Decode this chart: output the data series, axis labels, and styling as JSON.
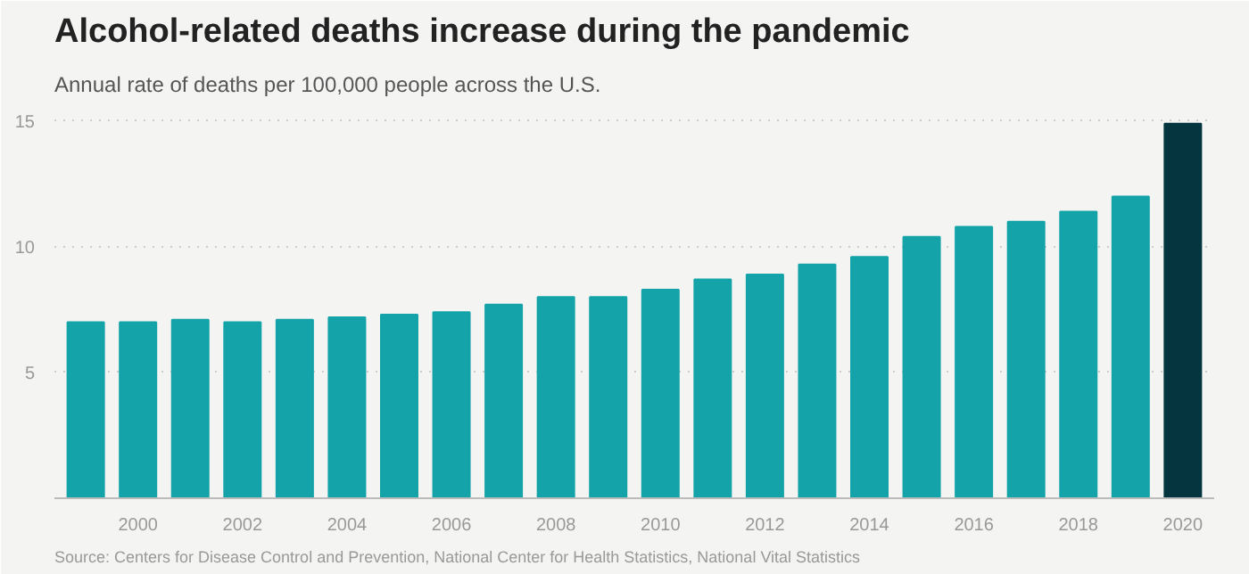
{
  "chart_data": {
    "type": "bar",
    "title": "Alcohol-related deaths increase during the pandemic",
    "subtitle": "Annual rate of deaths per 100,000 people across the U.S.",
    "x": [
      1999,
      2000,
      2001,
      2002,
      2003,
      2004,
      2005,
      2006,
      2007,
      2008,
      2009,
      2010,
      2011,
      2012,
      2013,
      2014,
      2015,
      2016,
      2017,
      2018,
      2019,
      2020
    ],
    "values": [
      7.0,
      7.0,
      7.1,
      7.0,
      7.1,
      7.2,
      7.3,
      7.4,
      7.7,
      8.0,
      8.0,
      8.3,
      8.7,
      8.9,
      9.3,
      9.6,
      10.4,
      10.8,
      11.0,
      11.4,
      12.0,
      14.9
    ],
    "colors": [
      "#13a3a8",
      "#13a3a8",
      "#13a3a8",
      "#13a3a8",
      "#13a3a8",
      "#13a3a8",
      "#13a3a8",
      "#13a3a8",
      "#13a3a8",
      "#13a3a8",
      "#13a3a8",
      "#13a3a8",
      "#13a3a8",
      "#13a3a8",
      "#13a3a8",
      "#13a3a8",
      "#13a3a8",
      "#13a3a8",
      "#13a3a8",
      "#13a3a8",
      "#13a3a8",
      "#05363f"
    ],
    "xlim": [
      1998.4,
      2020.6
    ],
    "xticks": [
      2000,
      2002,
      2004,
      2006,
      2008,
      2010,
      2012,
      2014,
      2016,
      2018,
      2020
    ],
    "ylim": [
      0,
      15.6
    ],
    "yticks": [
      5,
      10,
      15
    ],
    "grid": "y",
    "annotations": [
      "Source: Centers for Disease Control and Prevention, National Center for Health Statistics, National Vital Statistics"
    ]
  }
}
